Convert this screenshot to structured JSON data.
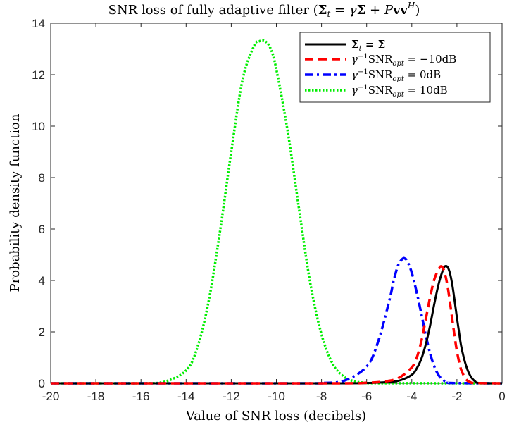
{
  "chart_data": {
    "type": "line",
    "title": "SNR loss of fully adaptive filter (Σ_t = γΣ + PvvH)",
    "title_parts": {
      "prefix": "SNR loss of fully adaptive filter (",
      "sigma": "Σ",
      "sub_t": "t",
      "eq": " = ",
      "gamma": "γ",
      "plus": " + ",
      "P": "P",
      "vv": "vv",
      "sup_H": "H",
      "suffix": ")"
    },
    "xlabel": "Value of SNR loss (decibels)",
    "ylabel": "Probability density function",
    "xlim": [
      -20,
      0
    ],
    "ylim": [
      0,
      14
    ],
    "x_ticks": [
      "-20",
      "-18",
      "-16",
      "-14",
      "-12",
      "-10",
      "-8",
      "-6",
      "-4",
      "-2",
      "0"
    ],
    "y_ticks": [
      "0",
      "2",
      "4",
      "6",
      "8",
      "10",
      "12",
      "14"
    ],
    "grid": false,
    "legend_position": "top-right",
    "series": [
      {
        "name": "Σ_t = Σ",
        "legend": {
          "a": "Σ",
          "sub": "t",
          "b": " = Σ"
        },
        "color": "#000000",
        "style": "solid",
        "x": [
          -20,
          -8,
          -6,
          -5,
          -4.5,
          -4,
          -3.8,
          -3.6,
          -3.4,
          -3.2,
          -3,
          -2.8,
          -2.6,
          -2.5,
          -2.4,
          -2.3,
          -2.2,
          -2.1,
          -2,
          -1.9,
          -1.8,
          -1.6,
          -1.4,
          -1.2,
          -1,
          0
        ],
        "values": [
          0,
          0,
          0.01,
          0.05,
          0.12,
          0.33,
          0.55,
          0.9,
          1.45,
          2.2,
          3.1,
          3.9,
          4.45,
          4.56,
          4.5,
          4.25,
          3.8,
          3.2,
          2.55,
          1.95,
          1.4,
          0.7,
          0.28,
          0.08,
          0.01,
          0
        ]
      },
      {
        "name": "γ^-1 SNR_opt = −10dB",
        "legend": {
          "g": "γ",
          "sup": "−1",
          "s": "SNR",
          "sub": "opt",
          "v": " = −10dB"
        },
        "color": "#ff0000",
        "style": "dashed",
        "x": [
          -20,
          -8,
          -6,
          -5,
          -4.5,
          -4,
          -3.8,
          -3.6,
          -3.4,
          -3.2,
          -3,
          -2.8,
          -2.7,
          -2.6,
          -2.5,
          -2.4,
          -2.3,
          -2.2,
          -2.1,
          -2,
          -1.9,
          -1.8,
          -1.6,
          -1.4,
          -1.2,
          0
        ],
        "values": [
          0,
          0,
          0.02,
          0.1,
          0.25,
          0.62,
          0.95,
          1.55,
          2.4,
          3.3,
          4.05,
          4.45,
          4.55,
          4.45,
          4.15,
          3.7,
          3.1,
          2.45,
          1.8,
          1.25,
          0.82,
          0.5,
          0.16,
          0.04,
          0.01,
          0
        ]
      },
      {
        "name": "γ^-1 SNR_opt = 0dB",
        "legend": {
          "g": "γ",
          "sup": "−1",
          "s": "SNR",
          "sub": "opt",
          "v": " = 0dB"
        },
        "color": "#0000ff",
        "style": "dashdot",
        "x": [
          -20,
          -9,
          -8,
          -7,
          -6,
          -5.5,
          -5,
          -4.8,
          -4.6,
          -4.4,
          -4.3,
          -4.2,
          -4,
          -3.8,
          -3.6,
          -3.4,
          -3.2,
          -3,
          -2.8,
          -2.6,
          -2.4,
          -2.2,
          0
        ],
        "values": [
          0,
          0,
          0.01,
          0.1,
          0.65,
          1.6,
          3.2,
          4.0,
          4.6,
          4.85,
          4.85,
          4.75,
          4.3,
          3.6,
          2.8,
          1.95,
          1.2,
          0.65,
          0.3,
          0.12,
          0.04,
          0.01,
          0
        ]
      },
      {
        "name": "γ^-1 SNR_opt = 10dB",
        "legend": {
          "g": "γ",
          "sup": "−1",
          "s": "SNR",
          "sub": "opt",
          "v": " = 10dB"
        },
        "color": "#00ee00",
        "style": "dotted",
        "x": [
          -20,
          -16,
          -15,
          -14,
          -13.5,
          -13,
          -12.5,
          -12,
          -11.5,
          -11,
          -10.75,
          -10.5,
          -10.25,
          -10,
          -9.5,
          -9,
          -8.5,
          -8,
          -7.5,
          -7,
          -6.5,
          -6,
          -5.5,
          0
        ],
        "values": [
          0,
          0,
          0.05,
          0.5,
          1.4,
          3.2,
          5.9,
          9.0,
          11.8,
          13.1,
          13.3,
          13.3,
          13.0,
          12.2,
          9.8,
          6.8,
          3.9,
          1.9,
          0.75,
          0.25,
          0.07,
          0.02,
          0.005,
          0
        ]
      }
    ]
  }
}
